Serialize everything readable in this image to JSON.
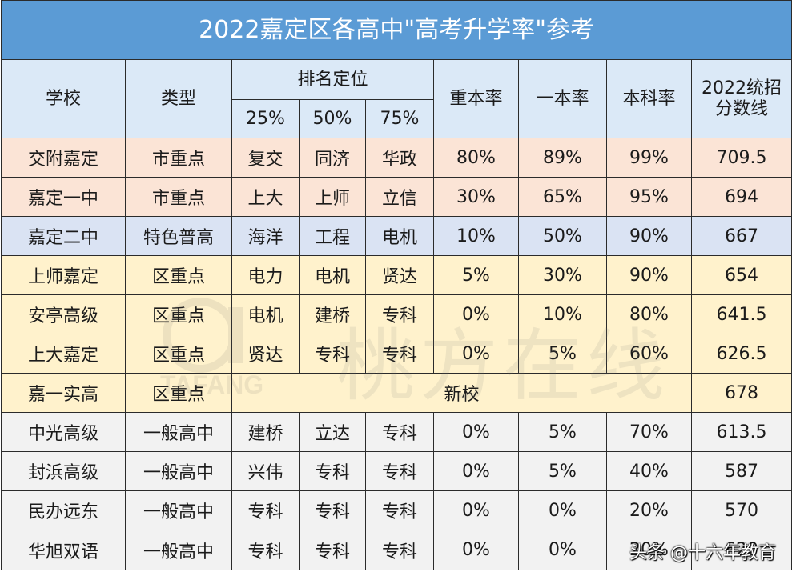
{
  "title": "2022嘉定区各高中\"高考升学率\"参考",
  "headers": {
    "school": "学校",
    "type": "类型",
    "ranking": "排名定位",
    "p25": "25%",
    "p50": "50%",
    "p75": "75%",
    "zhongben": "重本率",
    "yiben": "一本率",
    "benke": "本科率",
    "score_line1": "2022统招",
    "score_line2": "分数线"
  },
  "rows": [
    {
      "school": "交附嘉定",
      "type": "市重点",
      "p25": "复交",
      "p50": "同济",
      "p75": "华政",
      "zhongben": "80%",
      "yiben": "89%",
      "benke": "99%",
      "score": "709.5",
      "color": "#fbe4d6"
    },
    {
      "school": "嘉定一中",
      "type": "市重点",
      "p25": "上大",
      "p50": "上师",
      "p75": "立信",
      "zhongben": "30%",
      "yiben": "65%",
      "benke": "95%",
      "score": "694",
      "color": "#fbe4d6"
    },
    {
      "school": "嘉定二中",
      "type": "特色普高",
      "p25": "海洋",
      "p50": "工程",
      "p75": "电机",
      "zhongben": "10%",
      "yiben": "50%",
      "benke": "90%",
      "score": "667",
      "color": "#dae3f3"
    },
    {
      "school": "上师嘉定",
      "type": "区重点",
      "p25": "电力",
      "p50": "电机",
      "p75": "贤达",
      "zhongben": "5%",
      "yiben": "30%",
      "benke": "90%",
      "score": "654",
      "color": "#fff2cc"
    },
    {
      "school": "安亭高级",
      "type": "区重点",
      "p25": "电机",
      "p50": "建桥",
      "p75": "专科",
      "zhongben": "0%",
      "yiben": "10%",
      "benke": "80%",
      "score": "641.5",
      "color": "#fff2cc"
    },
    {
      "school": "上大嘉定",
      "type": "区重点",
      "p25": "贤达",
      "p50": "专科",
      "p75": "专科",
      "zhongben": "0%",
      "yiben": "5%",
      "benke": "60%",
      "score": "626.5",
      "color": "#fff2cc"
    },
    {
      "school": "嘉一实高",
      "type": "区重点",
      "merged": "新校",
      "score": "678",
      "color": "#fff2cc"
    },
    {
      "school": "中光高级",
      "type": "一般高中",
      "p25": "建桥",
      "p50": "立达",
      "p75": "专科",
      "zhongben": "0%",
      "yiben": "5%",
      "benke": "70%",
      "score": "613.5",
      "color": "#f2f2f2"
    },
    {
      "school": "封浜高级",
      "type": "一般高中",
      "p25": "兴伟",
      "p50": "专科",
      "p75": "专科",
      "zhongben": "0%",
      "yiben": "5%",
      "benke": "40%",
      "score": "587",
      "color": "#f2f2f2"
    },
    {
      "school": "民办远东",
      "type": "一般高中",
      "p25": "专科",
      "p50": "专科",
      "p75": "专科",
      "zhongben": "0%",
      "yiben": "0%",
      "benke": "20%",
      "score": "570",
      "color": "#f2f2f2"
    },
    {
      "school": "华旭双语",
      "type": "一般高中",
      "p25": "专科",
      "p50": "专科",
      "p75": "专科",
      "zhongben": "0%",
      "yiben": "0%",
      "benke": "20%",
      "score": "620",
      "color": "#f2f2f2"
    }
  ],
  "watermark": {
    "text": "桃方在线",
    "latin": "TAFANG"
  },
  "credit": "头条 @十六年教育"
}
